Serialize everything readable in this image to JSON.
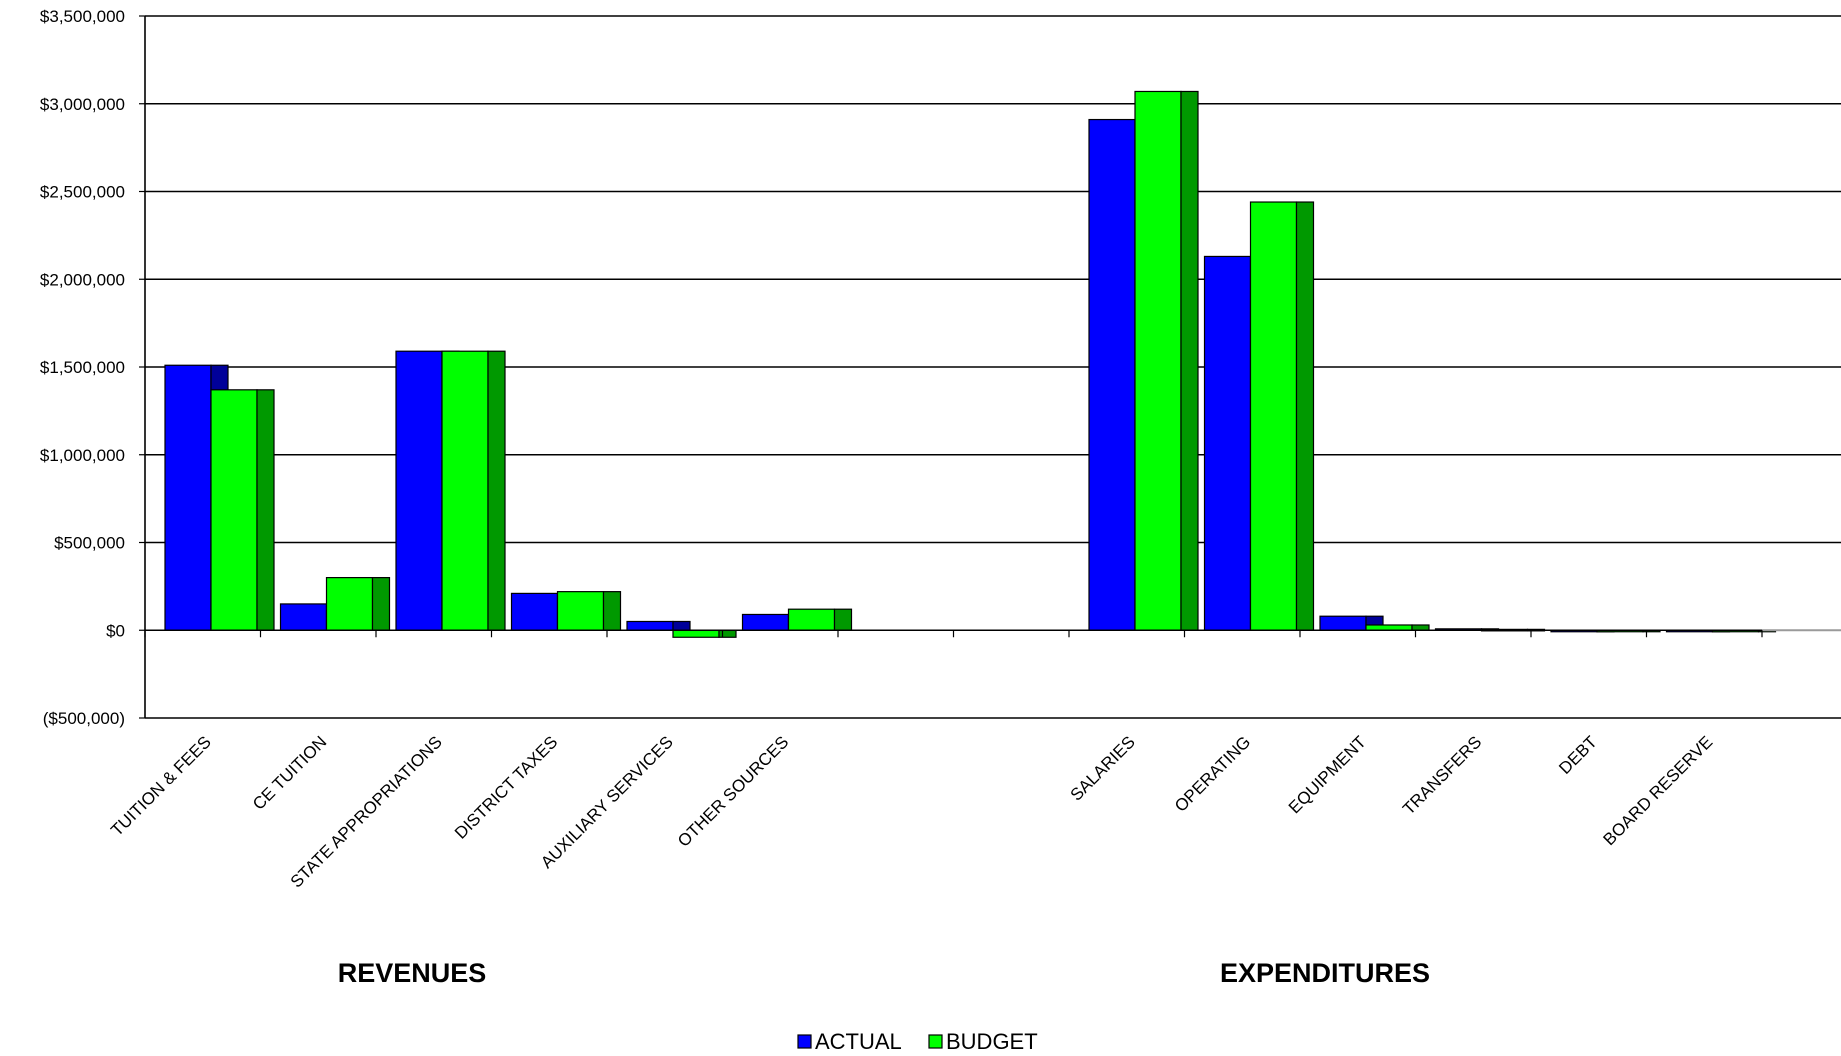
{
  "chart_data": {
    "type": "bar",
    "categories": [
      "TUITION & FEES",
      "CE TUITION",
      "STATE APPROPRIATIONS",
      "DISTRICT TAXES",
      "AUXILIARY SERVICES",
      "OTHER SOURCES",
      "",
      "",
      "SALARIES",
      "OPERATING",
      "EQUIPMENT",
      "TRANSFERS",
      "DEBT",
      "BOARD RESERVE"
    ],
    "series": [
      {
        "name": "ACTUAL",
        "color": "#0000FF",
        "values": [
          1510000,
          150000,
          1590000,
          210000,
          50000,
          90000,
          null,
          null,
          2910000,
          2130000,
          80000,
          8000,
          0,
          0
        ]
      },
      {
        "name": "BUDGET",
        "color": "#00FF00",
        "values": [
          1370000,
          300000,
          1590000,
          220000,
          -40000,
          120000,
          null,
          null,
          3070000,
          2440000,
          30000,
          5000,
          0,
          0
        ]
      }
    ],
    "groups": [
      {
        "label": "REVENUES"
      },
      {
        "label": "EXPENDITURES"
      }
    ],
    "ylim": [
      -500000,
      3500000
    ],
    "yticks": [
      "$3,500,000",
      "$3,000,000",
      "$2,500,000",
      "$2,000,000",
      "$1,500,000",
      "$1,000,000",
      "$500,000",
      "$0",
      "($500,000)"
    ],
    "ytick_values": [
      3500000,
      3000000,
      2500000,
      2000000,
      1500000,
      1000000,
      500000,
      0,
      -500000
    ],
    "grid": true,
    "legend": "bottom-center"
  }
}
